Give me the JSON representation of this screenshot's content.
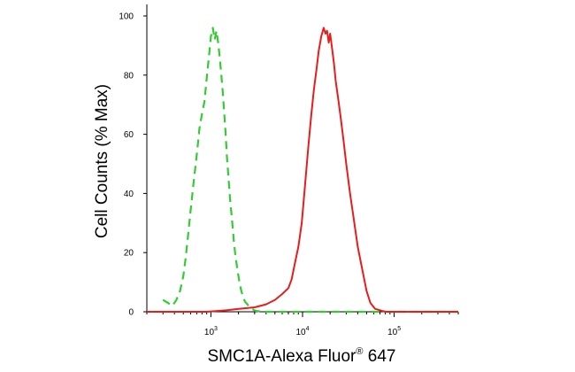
{
  "chart_data": {
    "type": "line",
    "title": "",
    "xlabel": {
      "main": "SMC1A-Alexa Fluor",
      "superscript": "®",
      "suffix": " 647"
    },
    "ylabel": "Cell Counts (% Max)",
    "x_scale": "log",
    "xlim": [
      200,
      500000
    ],
    "ylim": [
      0,
      100
    ],
    "x_ticks": [
      {
        "base": "10",
        "exp": "3",
        "value": 1000
      },
      {
        "base": "10",
        "exp": "4",
        "value": 10000
      },
      {
        "base": "10",
        "exp": "5",
        "value": 100000
      }
    ],
    "y_ticks": [
      {
        "value": 0,
        "label": "0"
      },
      {
        "value": 20,
        "label": "20"
      },
      {
        "value": 40,
        "label": "40"
      },
      {
        "value": 60,
        "label": "60"
      },
      {
        "value": 80,
        "label": "80"
      },
      {
        "value": 100,
        "label": "100"
      }
    ],
    "grid": false,
    "series": [
      {
        "color": "#33cc33",
        "style": "dashed",
        "x": [
          300,
          340,
          380,
          420,
          460,
          500,
          530,
          560,
          600,
          650,
          700,
          750,
          800,
          850,
          900,
          950,
          1000,
          1050,
          1100,
          1150,
          1200,
          1250,
          1300,
          1350,
          1400,
          1450,
          1500,
          1560,
          1620,
          1700,
          1780,
          1850,
          1950,
          2050,
          2150,
          2250,
          2350,
          2500,
          2650,
          2800,
          2950,
          3100,
          3300,
          3500,
          4000,
          5000,
          7000,
          10000,
          20000,
          40000,
          100000,
          500000
        ],
        "y": [
          4,
          3,
          2,
          4,
          7,
          12,
          18,
          25,
          34,
          44,
          53,
          62,
          67,
          71,
          79,
          86,
          93,
          96,
          92,
          95,
          91,
          86,
          80,
          74,
          67,
          60,
          52,
          45,
          38,
          31,
          24,
          19,
          14,
          10,
          7,
          5,
          3.5,
          2.5,
          1.5,
          1,
          0.6,
          0.3,
          0.2,
          0.1,
          0,
          0,
          0,
          0,
          0,
          0,
          0,
          0
        ]
      },
      {
        "color": "#e81c1c",
        "style": "solid",
        "x": [
          200,
          900,
          1500,
          2000,
          3000,
          4000,
          5000,
          6000,
          7000,
          7600,
          8200,
          9000,
          9800,
          10600,
          11500,
          12400,
          13300,
          14200,
          15000,
          16000,
          17000,
          17800,
          18500,
          19300,
          20000,
          21000,
          22000,
          23000,
          24500,
          26000,
          28000,
          30000,
          33000,
          36000,
          40000,
          45000,
          50000,
          55000,
          62000,
          70000,
          80000,
          100000,
          200000,
          500000
        ],
        "y": [
          0,
          0,
          0.5,
          1,
          1.5,
          2.5,
          4,
          6,
          8,
          11,
          16,
          22,
          30,
          42,
          55,
          66,
          75,
          82,
          88,
          93,
          96,
          94,
          95,
          91,
          94,
          89,
          84,
          78,
          72,
          66,
          58,
          50,
          40,
          32,
          22,
          14,
          7,
          3,
          1,
          0.5,
          0,
          0,
          0,
          0
        ]
      }
    ]
  }
}
